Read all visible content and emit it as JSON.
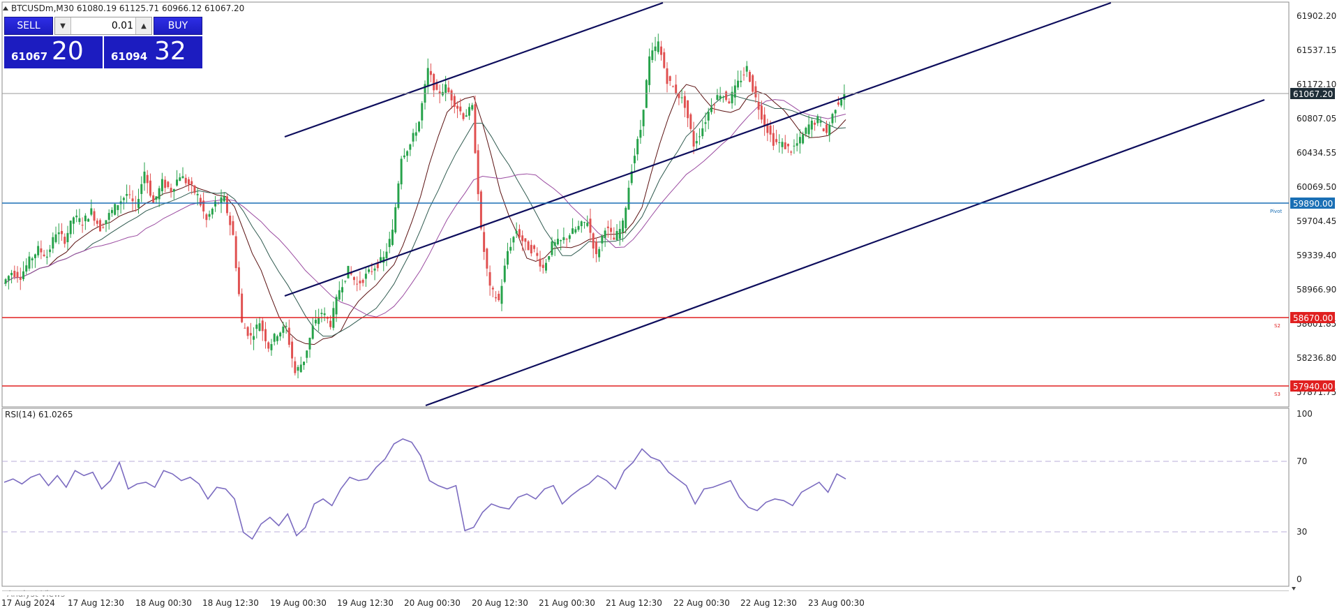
{
  "header": {
    "symbol_line": "BTCUSDm,M30  61080.19 61125.71 60966.12 61067.20"
  },
  "trade_panel": {
    "sell_label": "SELL",
    "buy_label": "BUY",
    "lot": "0.01",
    "bid_small": "61067",
    "bid_big": "20",
    "ask_small": "61094",
    "ask_big": "32"
  },
  "price_axis": {
    "ticks": [
      "61902.20",
      "61537.15",
      "61172.10",
      "60807.05",
      "60434.55",
      "60069.50",
      "59704.45",
      "59339.40",
      "58966.90",
      "58601.85",
      "58236.80",
      "57871.75"
    ],
    "current_price": "61067.20"
  },
  "levels": [
    {
      "price": 59890.0,
      "label": "59890.00",
      "tag": "Pivot",
      "color": "#1a6fb5"
    },
    {
      "price": 58670.0,
      "label": "58670.00",
      "tag": "S2",
      "color": "#e02020"
    },
    {
      "price": 57940.0,
      "label": "57940.00",
      "tag": "S3",
      "color": "#e02020"
    }
  ],
  "rsi": {
    "title": "RSI(14) 61.0265",
    "ticks": [
      "100",
      "70",
      "30",
      "0"
    ],
    "levels": [
      70,
      30
    ]
  },
  "time_axis": {
    "labels": [
      "17 Aug 2024",
      "17 Aug 12:30",
      "18 Aug 00:30",
      "18 Aug 12:30",
      "19 Aug 00:30",
      "19 Aug 12:30",
      "20 Aug 00:30",
      "20 Aug 12:30",
      "21 Aug 00:30",
      "21 Aug 12:30",
      "22 Aug 00:30",
      "22 Aug 12:30",
      "23 Aug 00:30"
    ]
  },
  "footer": {
    "tab_label": "Analyst Views"
  },
  "colors": {
    "bull": "#26a24a",
    "bear": "#e05050",
    "channel": "#0d0d5c",
    "rsi_line": "#7b6bc0",
    "ma_fast": "#5a1010",
    "ma_mid": "#2f5a4f",
    "ma_slow": "#9a4aa0"
  },
  "chart_data": {
    "type": "candlestick",
    "title": "BTCUSDm,M30",
    "ylim": [
      57780,
      62000
    ],
    "close_path": [
      59060,
      59180,
      59140,
      59300,
      59420,
      59350,
      59600,
      59520,
      59760,
      59700,
      59820,
      59640,
      59780,
      59900,
      60000,
      59860,
      60240,
      59900,
      60120,
      60040,
      60200,
      60100,
      59980,
      59720,
      59900,
      59940,
      59560,
      58640,
      58500,
      58660,
      58400,
      58540,
      58600,
      58120,
      58260,
      58600,
      58760,
      58640,
      59000,
      59200,
      59050,
      59140,
      59240,
      59320,
      59600,
      60400,
      60520,
      60760,
      61300,
      61050,
      61120,
      60960,
      60820,
      60900,
      59600,
      59000,
      58880,
      59400,
      59620,
      59460,
      59400,
      59220,
      59460,
      59500,
      59580,
      59650,
      59720,
      59340,
      59660,
      59520,
      59680,
      60280,
      60680,
      61420,
      61580,
      61200,
      61080,
      60940,
      60520,
      60700,
      60940,
      61060,
      60980,
      61160,
      61320,
      61000,
      60740,
      60550,
      60520,
      60460,
      60560,
      60720,
      60780,
      60640,
      60920,
      61067.2
    ],
    "rsi_values": [
      59,
      61,
      58,
      62,
      64,
      57,
      63,
      56,
      66,
      63,
      65,
      55,
      60,
      71,
      55,
      58,
      59,
      56,
      66,
      64,
      60,
      62,
      58,
      49,
      56,
      55,
      49,
      29,
      25,
      34,
      38,
      33,
      40,
      27,
      32,
      46,
      49,
      45,
      55,
      62,
      60,
      61,
      68,
      73,
      82,
      85,
      83,
      75,
      60,
      57,
      55,
      57,
      30,
      32,
      41,
      46,
      44,
      43,
      50,
      52,
      49,
      55,
      57,
      46,
      51,
      55,
      58,
      63,
      60,
      55,
      66,
      71,
      79,
      74,
      72,
      65,
      61,
      57,
      46,
      55,
      56,
      58,
      60,
      50,
      44,
      42,
      47,
      49,
      48,
      45,
      53,
      56,
      59,
      53,
      64,
      61.03
    ]
  }
}
